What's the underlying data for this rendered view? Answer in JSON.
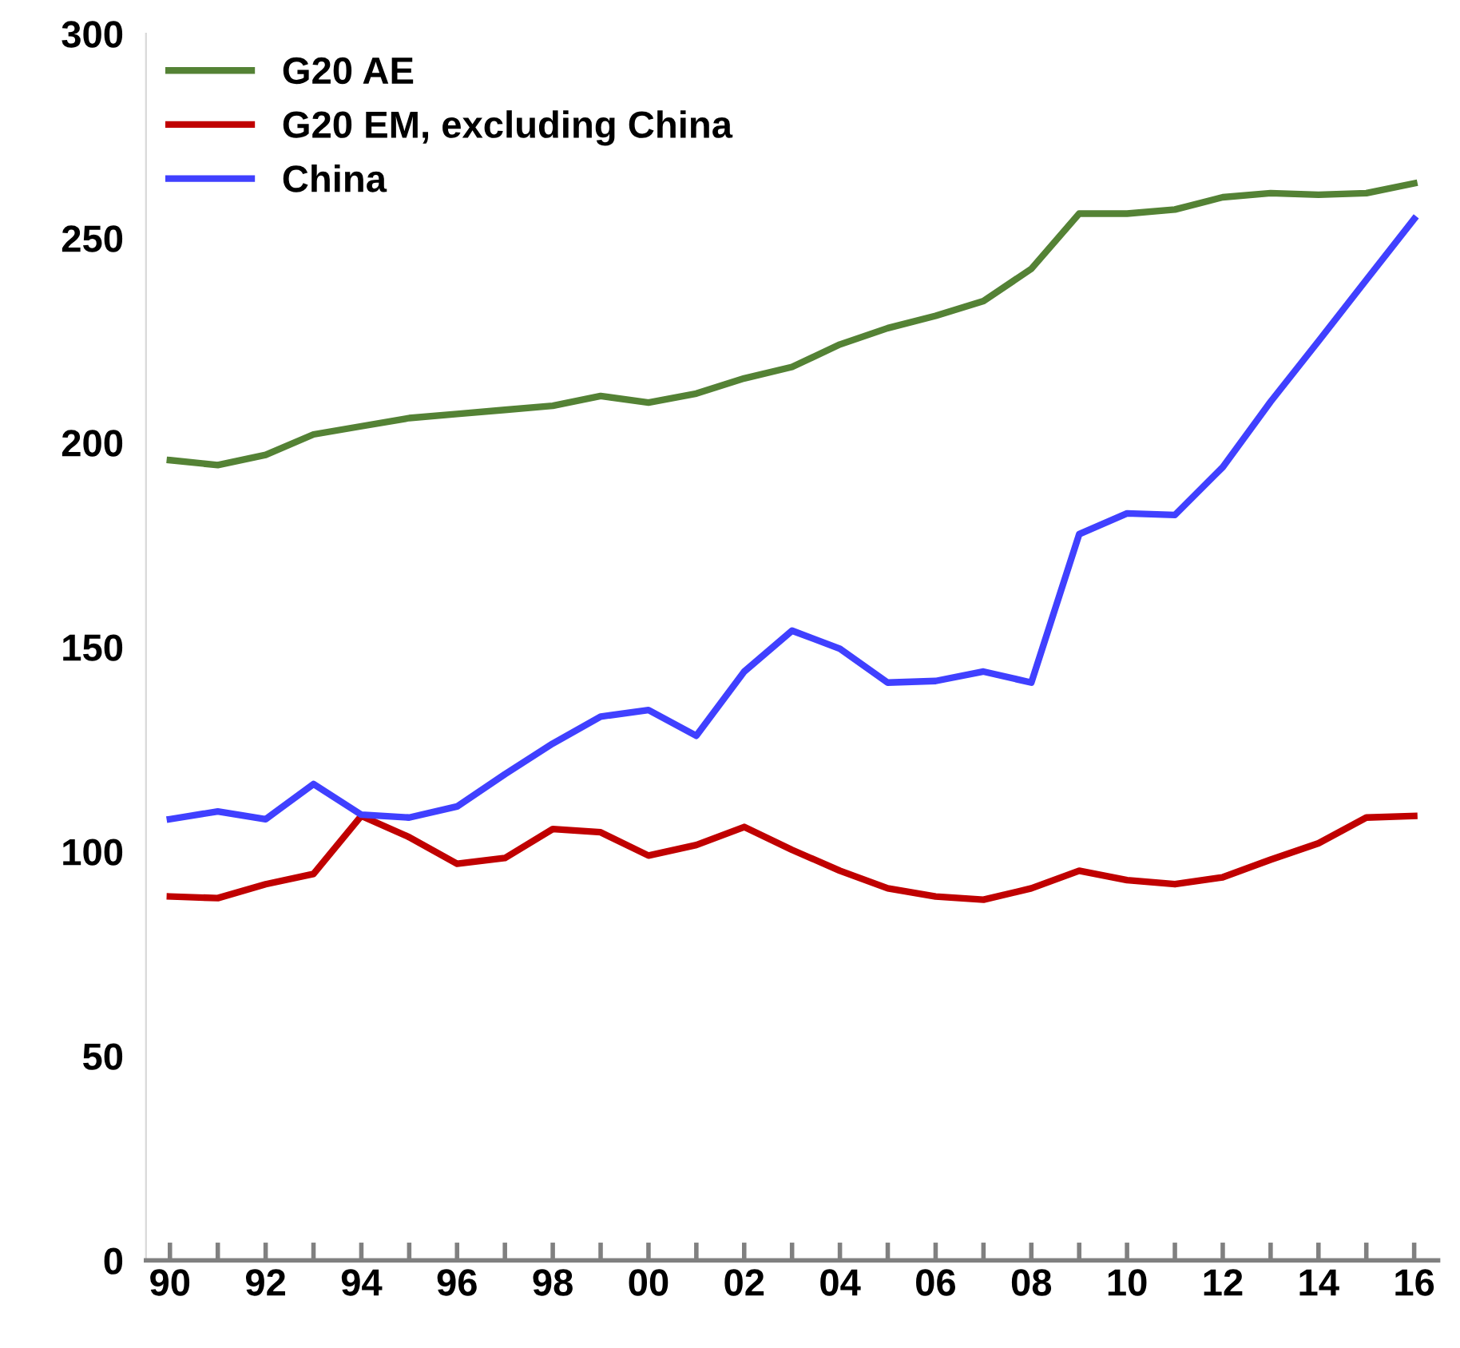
{
  "chart_data": {
    "type": "line",
    "categories": [
      "90",
      null,
      "92",
      null,
      "94",
      null,
      "96",
      null,
      "98",
      null,
      "00",
      null,
      "02",
      null,
      "04",
      null,
      "06",
      null,
      "08",
      null,
      "10",
      null,
      "12",
      null,
      "14",
      null,
      "16"
    ],
    "series": [
      {
        "name": "G20 AE",
        "color": "#548235",
        "values": [
          195.7,
          194.5,
          197,
          202,
          204,
          206,
          207,
          208,
          209,
          211.4,
          209.8,
          212,
          215.7,
          218.5,
          224,
          228,
          231,
          234.6,
          242.5,
          256,
          256,
          257,
          260,
          261,
          260.6,
          261,
          263.4
        ]
      },
      {
        "name": "G20 EM, excluding China",
        "color": "#c00000",
        "values": [
          89,
          88.6,
          92,
          94.5,
          108.7,
          103.5,
          97,
          98.4,
          105.5,
          104.7,
          99,
          101.6,
          106,
          100.4,
          95.3,
          91,
          89,
          88.2,
          91,
          95.3,
          93,
          92,
          93.7,
          98,
          102,
          108.3,
          108.7
        ]
      },
      {
        "name": "China",
        "color": "#4040ff",
        "values": [
          107.9,
          109.8,
          107.9,
          116.5,
          109,
          108.3,
          111,
          118.9,
          126.4,
          133,
          134.6,
          128.3,
          144,
          154,
          149.6,
          141.3,
          141.7,
          144,
          141.3,
          177.6,
          182.7,
          182.3,
          194,
          210,
          224.8,
          239.8,
          254.7
        ]
      }
    ],
    "ylim": [
      0,
      300
    ],
    "yticks": [
      0,
      50,
      100,
      150,
      200,
      250,
      300
    ],
    "legend": "top left",
    "grid": false,
    "marker": "none",
    "line_style": "solid"
  }
}
